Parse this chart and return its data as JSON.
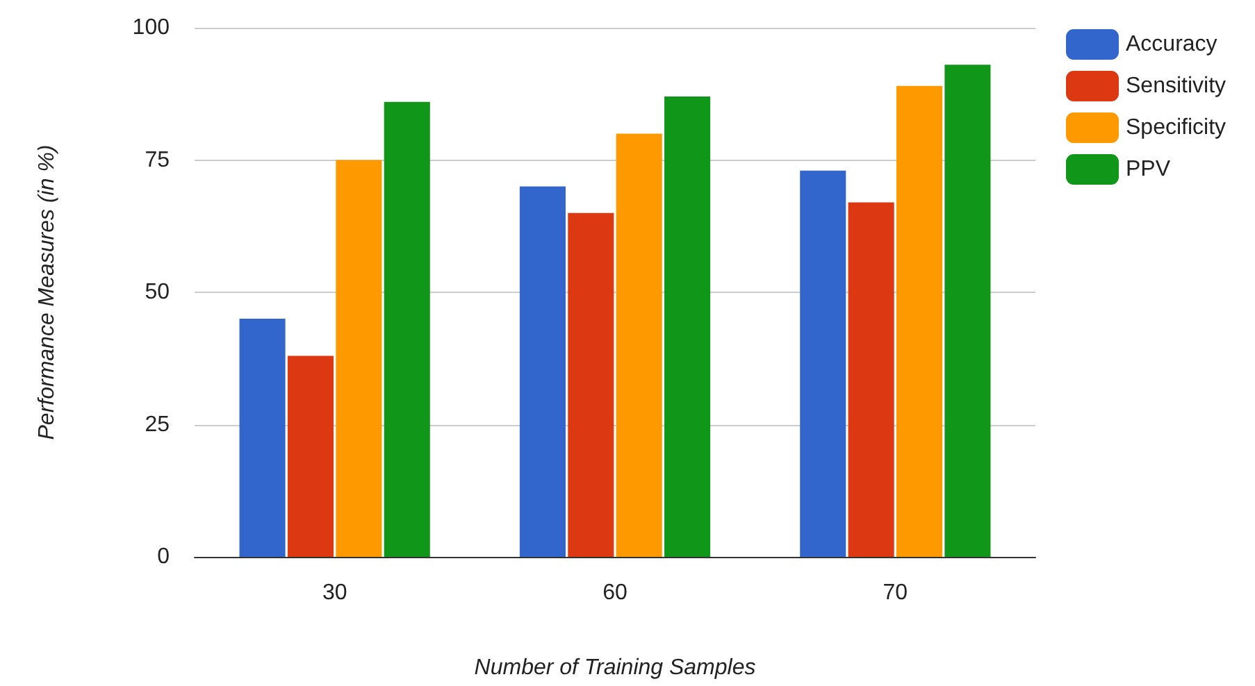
{
  "chart_data": {
    "type": "bar",
    "xlabel": "Number of Training Samples",
    "ylabel": "Performance Measures (in %)",
    "categories": [
      "30",
      "60",
      "70"
    ],
    "series": [
      {
        "name": "Accuracy",
        "color": "#3366cc",
        "values": [
          45,
          70,
          73
        ]
      },
      {
        "name": "Sensitivity",
        "color": "#dc3912",
        "values": [
          38,
          65,
          67
        ]
      },
      {
        "name": "Specificity",
        "color": "#ff9900",
        "values": [
          75,
          80,
          89
        ]
      },
      {
        "name": "PPV",
        "color": "#109618",
        "values": [
          86,
          87,
          93
        ]
      }
    ],
    "ylim": [
      0,
      100
    ],
    "yticks": [
      0,
      25,
      50,
      75,
      100
    ],
    "grid": "y",
    "legend": "top right"
  }
}
